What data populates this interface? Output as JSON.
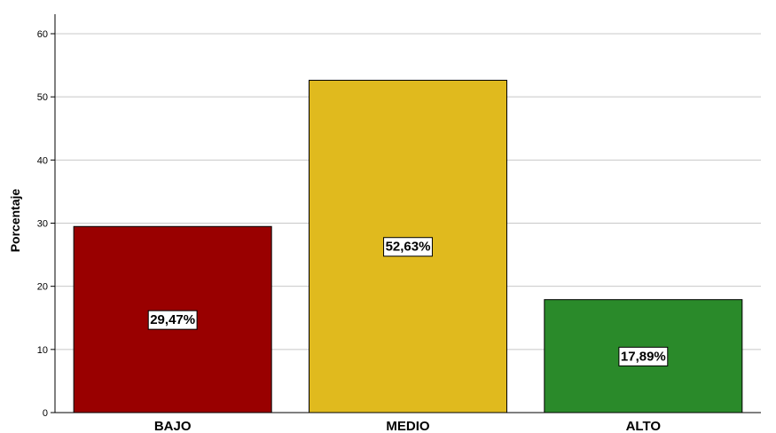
{
  "chart_data": {
    "type": "bar",
    "categories": [
      "BAJO",
      "MEDIO",
      "ALTO"
    ],
    "values": [
      29.47,
      52.63,
      17.89
    ],
    "data_labels": [
      "29,47%",
      "52,63%",
      "17,89%"
    ],
    "colors": [
      "#990000",
      "#E0BA1E",
      "#2A8A2A"
    ],
    "ylabel": "Porcentaje",
    "xlabel": "",
    "ylim": [
      0,
      60
    ],
    "yticks": [
      0,
      10,
      20,
      30,
      40,
      50,
      60
    ],
    "grid": true
  }
}
